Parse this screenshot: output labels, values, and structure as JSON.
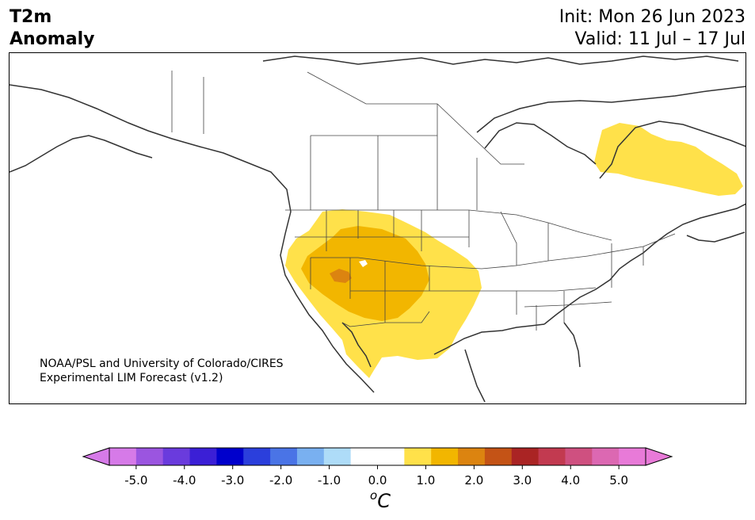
{
  "header": {
    "title_line1": "T2m",
    "title_line2": "Anomaly",
    "init_label": "Init: Mon 26 Jun 2023",
    "valid_label": "Valid: 11 Jul – 17 Jul"
  },
  "credit": {
    "line1": "NOAA/PSL and University of Colorado/CIRES",
    "line2": "Experimental LIM Forecast (v1.2)"
  },
  "colorbar": {
    "bins": [
      -5.0,
      -4.5,
      -4.0,
      -3.5,
      -3.0,
      -2.5,
      -2.0,
      -1.5,
      -1.0,
      -0.5,
      0.5,
      1.0,
      1.5,
      2.0,
      2.5,
      3.0,
      3.5,
      4.0,
      4.5,
      5.0
    ],
    "colors": [
      "#d67ae8",
      "#9b55e0",
      "#6a3bdd",
      "#3b1fd6",
      "#0000cc",
      "#2b3fdc",
      "#4a74e6",
      "#79b0f0",
      "#aedcf8",
      "#ffffff",
      "#ffffff",
      "#ffe14a",
      "#f2b600",
      "#dc8410",
      "#c45316",
      "#aa2424",
      "#c23a50",
      "#cf5080",
      "#dc68b2",
      "#e87ad8"
    ],
    "under_color": "#d67ae8",
    "over_color": "#e87ad8",
    "tick_labels": [
      "-5.0",
      "-4.0",
      "-3.0",
      "-2.0",
      "-1.0",
      "0.0",
      "1.0",
      "2.0",
      "3.0",
      "4.0",
      "5.0"
    ],
    "unit_base": "C",
    "unit_sup": "o"
  },
  "anomaly_regions": [
    {
      "label": "1.0",
      "color": "#ffe14a"
    },
    {
      "label": "1.5",
      "color": "#f2b600"
    },
    {
      "label": "2.0",
      "color": "#dc8410"
    }
  ]
}
